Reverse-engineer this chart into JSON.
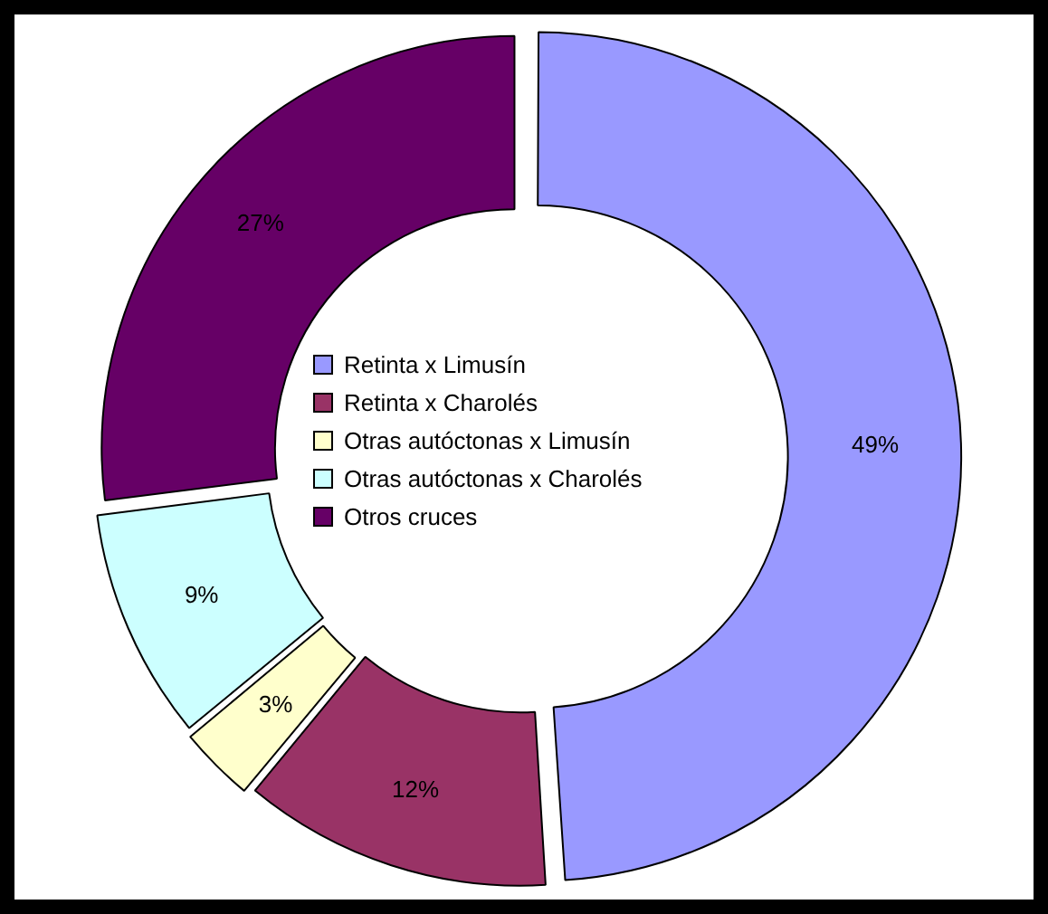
{
  "chart_data": {
    "type": "donut",
    "categories": [
      "Retinta x Limusín",
      "Retinta x Charolés",
      "Otras autóctonas x Limusín",
      "Otras autóctonas x Charolés",
      "Otros cruces"
    ],
    "values": [
      49,
      12,
      3,
      9,
      27
    ],
    "colors": [
      "#9999ff",
      "#993366",
      "#ffffcc",
      "#ccffff",
      "#660066"
    ],
    "value_labels": [
      "49%",
      "12%",
      "3%",
      "9%",
      "27%"
    ],
    "legend": "center"
  }
}
